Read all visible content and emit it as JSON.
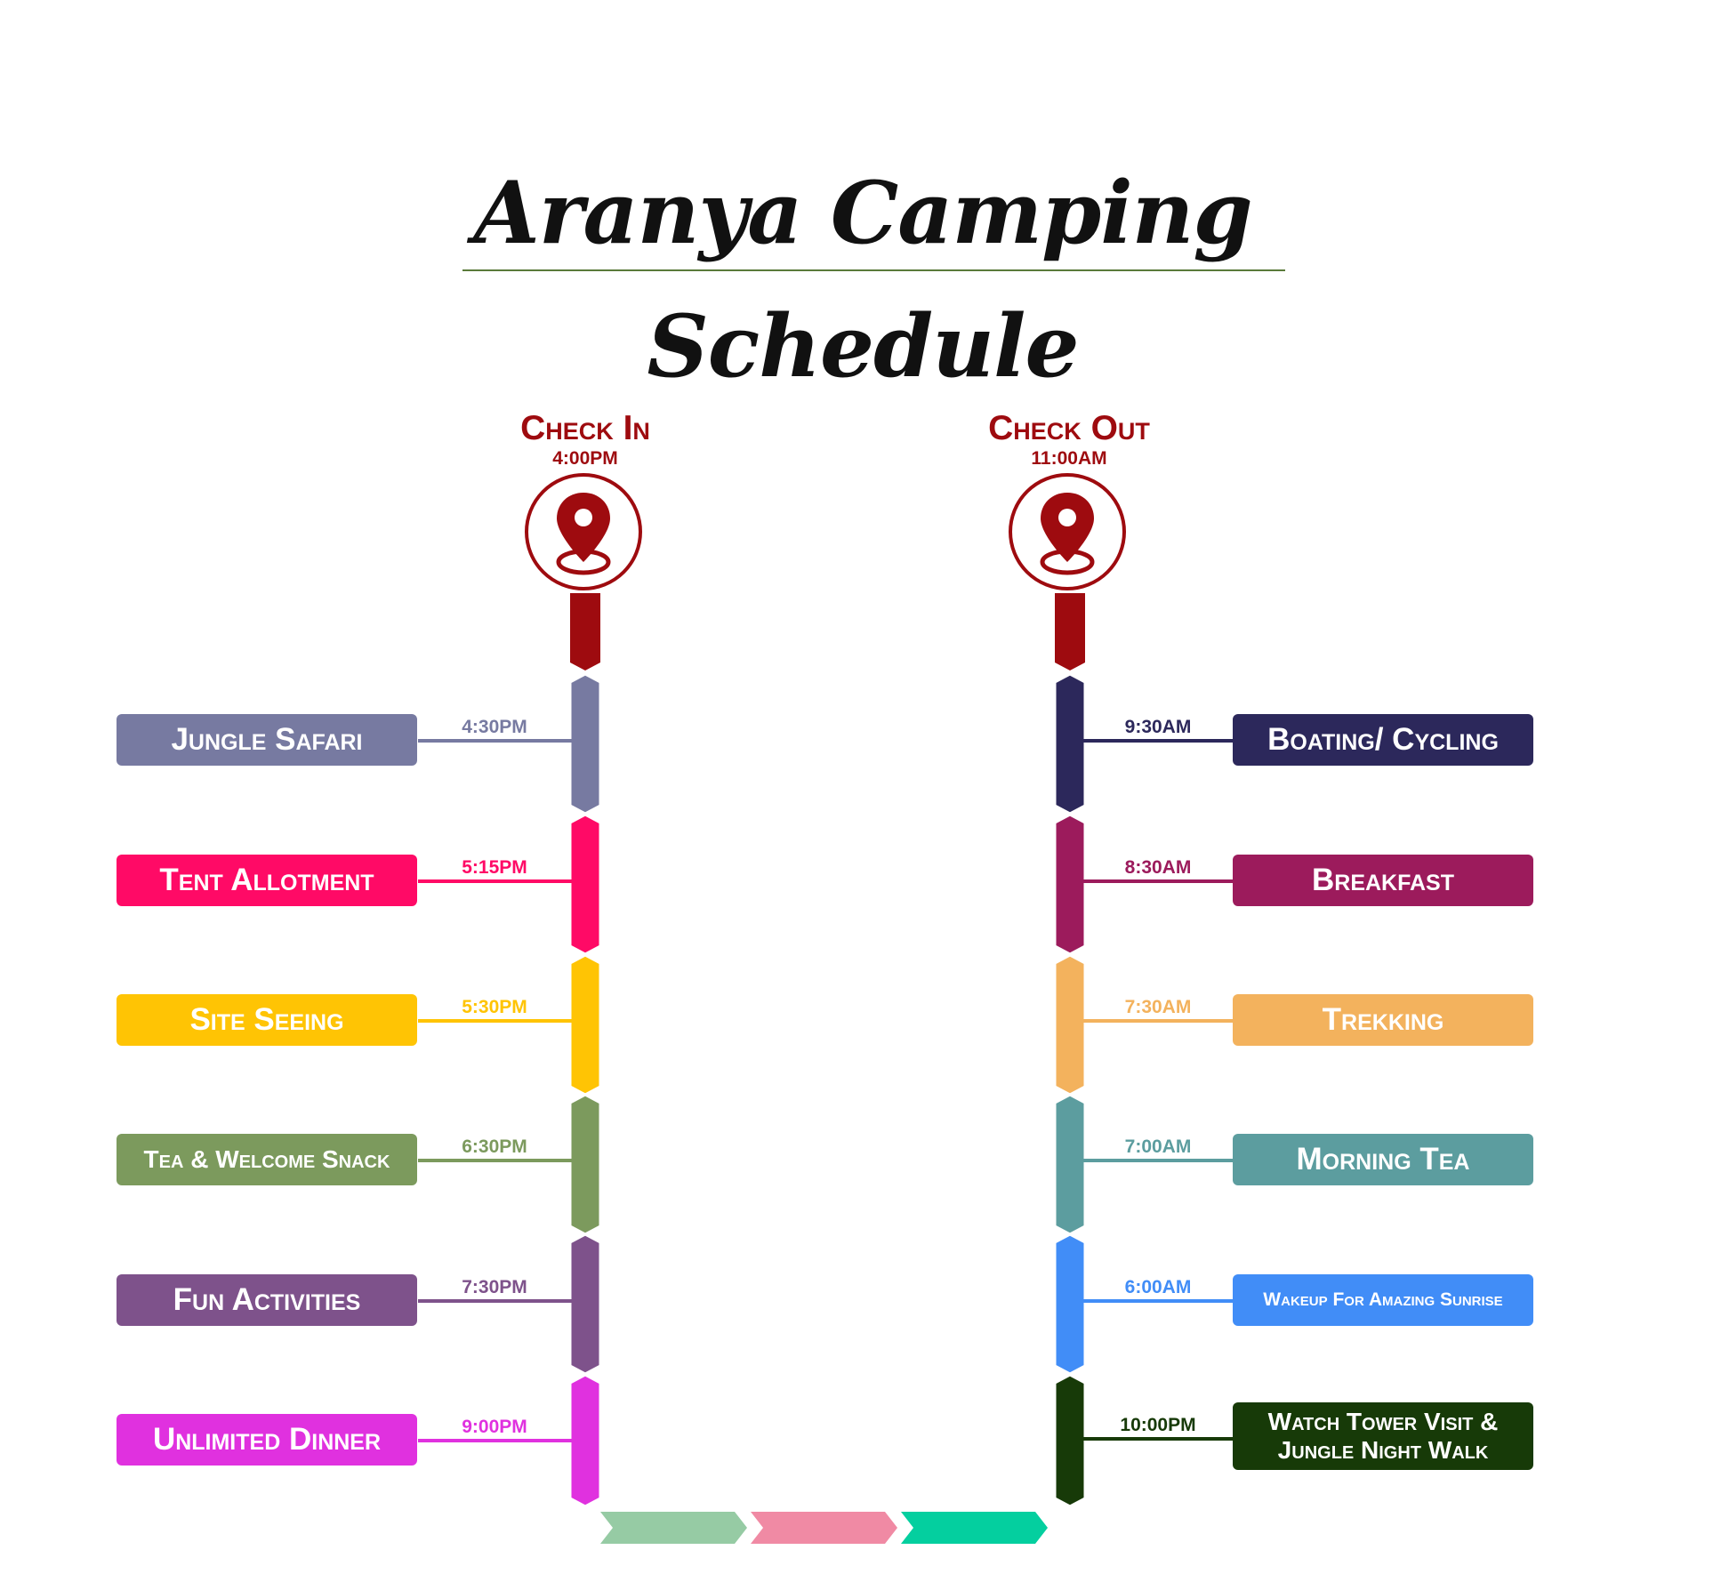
{
  "title": "Aranya Camping Schedule",
  "check_in": {
    "label": "Check In",
    "time": "4:00PM",
    "icon": "location-pin-icon"
  },
  "check_out": {
    "label": "Check Out",
    "time": "11:00AM",
    "icon": "location-pin-icon"
  },
  "brand_color": "#9e0b0f",
  "left_items": [
    {
      "label": "Jungle  Safari",
      "time": "4:30PM",
      "color": "#777aa1"
    },
    {
      "label": "Tent Allotment",
      "time": "5:15PM",
      "color": "#ff0a66"
    },
    {
      "label": "Site Seeing",
      "time": "5:30PM",
      "color": "#ffc404"
    },
    {
      "label": "Tea & Welcome Snack",
      "time": "6:30PM",
      "color": "#7c9a5d"
    },
    {
      "label": "Fun Activities",
      "time": "7:30PM",
      "color": "#7e528b"
    },
    {
      "label": "Unlimited Dinner",
      "time": "9:00PM",
      "color": "#e031df"
    }
  ],
  "right_items": [
    {
      "label": "Boating/ Cycling",
      "time": "9:30AM",
      "color": "#2c285b"
    },
    {
      "label": "Breakfast",
      "time": "8:30AM",
      "color": "#9c1b5c"
    },
    {
      "label": "Trekking",
      "time": "7:30AM",
      "color": "#f3b25d"
    },
    {
      "label": "Morning Tea",
      "time": "7:00AM",
      "color": "#5c9d9f"
    },
    {
      "label": "Wakeup For Amazing Sunrise",
      "time": "6:00AM",
      "color": "#418df7"
    },
    {
      "label": "Watch Tower Visit & Jungle Night Walk",
      "time": "10:00PM",
      "color": "#173a08"
    }
  ],
  "bottom_segments": [
    {
      "color": "#96cba4"
    },
    {
      "color": "#f08aa4"
    },
    {
      "color": "#04cf9f"
    }
  ]
}
